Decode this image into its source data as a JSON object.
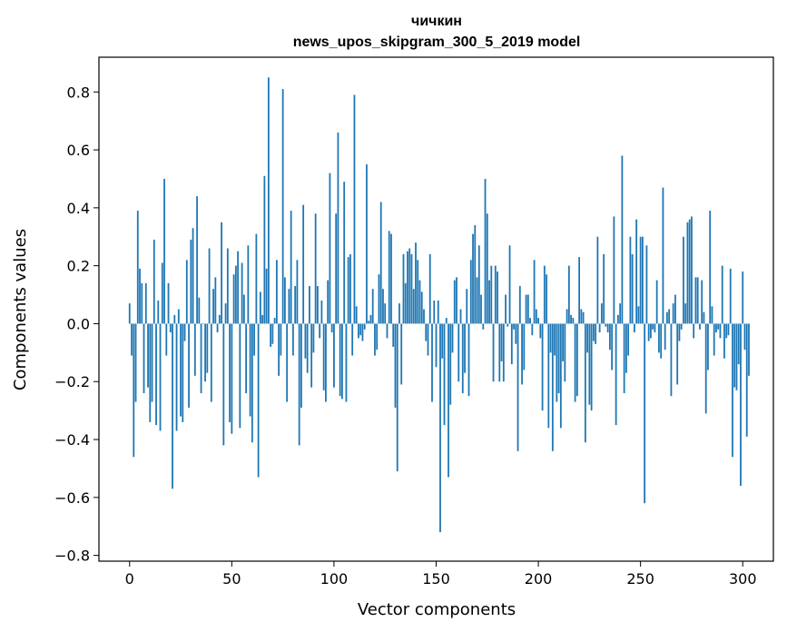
{
  "chart_data": {
    "type": "bar",
    "title_line1": "чичкин",
    "title_line2": "news_upos_skipgram_300_5_2019 model",
    "xlabel": "Vector components",
    "ylabel": "Components values",
    "xlim": [
      -15,
      315
    ],
    "ylim": [
      -0.82,
      0.92
    ],
    "xticks": [
      0,
      50,
      100,
      150,
      200,
      250,
      300
    ],
    "xtick_labels": [
      "0",
      "50",
      "100",
      "150",
      "200",
      "250",
      "300"
    ],
    "yticks": [
      -0.8,
      -0.6,
      -0.4,
      -0.2,
      0.0,
      0.2,
      0.4,
      0.6,
      0.8
    ],
    "ytick_labels": [
      "−0.8",
      "−0.6",
      "−0.4",
      "−0.2",
      "0.0",
      "0.2",
      "0.4",
      "0.6",
      "0.8"
    ],
    "bar_color": "#1f77b4",
    "values": [
      0.07,
      -0.11,
      -0.46,
      -0.27,
      0.39,
      0.19,
      0.14,
      -0.24,
      0.14,
      -0.22,
      -0.34,
      -0.27,
      0.29,
      -0.35,
      0.08,
      -0.37,
      0.21,
      0.5,
      -0.11,
      0.14,
      -0.03,
      -0.57,
      0.03,
      -0.37,
      0.05,
      -0.32,
      -0.34,
      -0.06,
      0.22,
      -0.29,
      0.29,
      0.33,
      -0.18,
      0.44,
      0.09,
      -0.24,
      0.0,
      -0.2,
      -0.17,
      0.26,
      -0.27,
      0.12,
      0.16,
      -0.03,
      0.03,
      0.35,
      -0.42,
      0.07,
      0.26,
      -0.34,
      -0.38,
      0.17,
      0.2,
      0.25,
      -0.36,
      0.21,
      0.1,
      -0.24,
      0.27,
      -0.32,
      -0.41,
      -0.11,
      0.31,
      -0.53,
      0.11,
      0.03,
      0.51,
      0.19,
      0.85,
      -0.08,
      -0.07,
      0.02,
      0.22,
      -0.18,
      -0.11,
      0.81,
      0.16,
      -0.27,
      0.12,
      0.39,
      -0.11,
      0.13,
      0.22,
      -0.42,
      -0.29,
      0.41,
      -0.12,
      -0.17,
      0.13,
      -0.22,
      -0.1,
      0.38,
      0.13,
      -0.05,
      0.08,
      -0.23,
      -0.27,
      0.15,
      0.52,
      -0.03,
      -0.22,
      0.38,
      0.66,
      -0.25,
      -0.26,
      0.49,
      -0.27,
      0.23,
      0.24,
      -0.11,
      0.79,
      0.06,
      -0.05,
      -0.04,
      -0.06,
      -0.02,
      0.55,
      0.01,
      0.03,
      0.12,
      -0.11,
      -0.09,
      0.17,
      0.42,
      0.12,
      0.07,
      -0.05,
      0.32,
      0.31,
      -0.08,
      -0.29,
      -0.51,
      0.07,
      -0.21,
      0.24,
      0.14,
      0.25,
      0.26,
      0.24,
      0.12,
      0.28,
      0.22,
      0.15,
      0.11,
      0.05,
      -0.06,
      -0.11,
      0.24,
      -0.27,
      0.08,
      -0.15,
      0.08,
      -0.72,
      -0.12,
      -0.35,
      0.02,
      -0.53,
      -0.28,
      -0.1,
      0.15,
      0.16,
      -0.2,
      0.05,
      -0.24,
      -0.17,
      0.12,
      -0.25,
      0.22,
      0.31,
      0.34,
      0.16,
      0.27,
      0.1,
      -0.02,
      0.5,
      0.38,
      0.15,
      0.2,
      -0.2,
      0.2,
      0.18,
      -0.2,
      -0.13,
      -0.2,
      0.1,
      -0.01,
      0.27,
      -0.14,
      -0.02,
      -0.07,
      -0.44,
      0.13,
      -0.21,
      -0.16,
      0.1,
      0.1,
      0.02,
      -0.04,
      0.22,
      0.05,
      0.02,
      -0.05,
      -0.3,
      0.2,
      0.17,
      -0.36,
      -0.1,
      -0.44,
      -0.11,
      -0.27,
      -0.24,
      -0.36,
      -0.13,
      -0.2,
      0.05,
      0.2,
      0.03,
      0.02,
      -0.27,
      -0.25,
      0.23,
      0.05,
      0.04,
      -0.41,
      -0.1,
      -0.28,
      -0.3,
      -0.06,
      -0.07,
      0.3,
      -0.03,
      0.07,
      0.24,
      -0.01,
      -0.03,
      -0.09,
      -0.16,
      0.37,
      -0.35,
      0.03,
      0.07,
      0.58,
      -0.24,
      -0.17,
      -0.11,
      0.3,
      0.24,
      -0.03,
      0.36,
      0.06,
      0.3,
      0.3,
      -0.62,
      0.27,
      -0.06,
      -0.05,
      -0.02,
      -0.03,
      0.15,
      -0.1,
      -0.12,
      0.47,
      -0.09,
      0.04,
      0.05,
      -0.25,
      0.07,
      0.1,
      -0.21,
      -0.06,
      -0.02,
      0.3,
      0.07,
      0.35,
      0.36,
      0.37,
      -0.05,
      0.16,
      0.16,
      -0.02,
      0.15,
      0.04,
      -0.31,
      -0.16,
      0.39,
      0.06,
      -0.11,
      -0.03,
      -0.02,
      -0.05,
      0.2,
      -0.12,
      -0.05,
      -0.04,
      0.19,
      -0.46,
      -0.22,
      -0.23,
      -0.14,
      -0.56,
      0.18,
      -0.09,
      -0.39,
      -0.18
    ]
  }
}
